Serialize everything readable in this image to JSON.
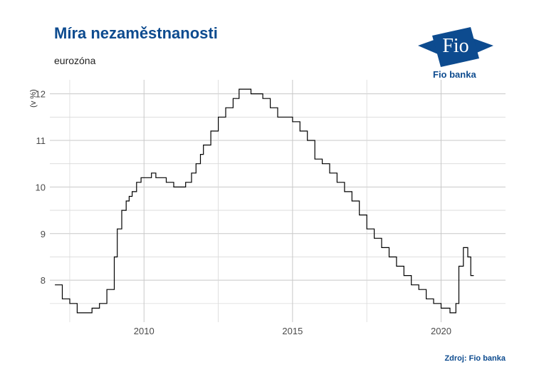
{
  "header": {
    "title": "Míra nezaměstnanosti",
    "subtitle": "eurozóna"
  },
  "logo": {
    "mark": "Fio",
    "name": "Fio banka",
    "color": "#0d4b8f"
  },
  "footer": {
    "source": "Zdroj: Fio banka"
  },
  "chart_data": {
    "type": "line",
    "title": "Míra nezaměstnanosti",
    "subtitle": "eurozóna",
    "xlabel": "",
    "ylabel": "(v %)",
    "xlim": [
      2006.83,
      2022.17
    ],
    "ylim": [
      7.1,
      12.3
    ],
    "x_ticks": [
      2010,
      2015,
      2020
    ],
    "y_ticks": [
      8,
      9,
      10,
      11,
      12
    ],
    "grid": true,
    "line_color": "#000000",
    "series": [
      {
        "x": [
          2007.0,
          2007.25,
          2007.5,
          2007.75,
          2007.9,
          2008.0,
          2008.25,
          2008.5,
          2008.75,
          2009.0,
          2009.1,
          2009.25,
          2009.4,
          2009.5,
          2009.6,
          2009.75,
          2009.9,
          2010.0,
          2010.25,
          2010.4,
          2010.6,
          2010.75,
          2011.0,
          2011.2,
          2011.4,
          2011.6,
          2011.75,
          2011.9,
          2012.0,
          2012.25,
          2012.5,
          2012.75,
          2013.0,
          2013.2,
          2013.4,
          2013.6,
          2013.75,
          2014.0,
          2014.25,
          2014.5,
          2014.75,
          2015.0,
          2015.25,
          2015.5,
          2015.75,
          2016.0,
          2016.25,
          2016.5,
          2016.75,
          2017.0,
          2017.25,
          2017.5,
          2017.75,
          2018.0,
          2018.25,
          2018.5,
          2018.75,
          2019.0,
          2019.25,
          2019.5,
          2019.75,
          2020.0,
          2020.2,
          2020.3,
          2020.4,
          2020.5,
          2020.6,
          2020.75,
          2020.9,
          2021.0,
          2021.1
        ],
        "y": [
          7.9,
          7.6,
          7.5,
          7.3,
          7.3,
          7.3,
          7.4,
          7.5,
          7.8,
          8.5,
          9.1,
          9.5,
          9.7,
          9.8,
          9.9,
          10.1,
          10.2,
          10.2,
          10.3,
          10.2,
          10.2,
          10.1,
          10.0,
          10.0,
          10.1,
          10.3,
          10.5,
          10.7,
          10.9,
          11.2,
          11.5,
          11.7,
          11.9,
          12.1,
          12.1,
          12.0,
          12.0,
          11.9,
          11.7,
          11.5,
          11.5,
          11.4,
          11.2,
          11.0,
          10.6,
          10.5,
          10.3,
          10.1,
          9.9,
          9.7,
          9.4,
          9.1,
          8.9,
          8.7,
          8.5,
          8.3,
          8.1,
          7.9,
          7.8,
          7.6,
          7.5,
          7.4,
          7.4,
          7.3,
          7.3,
          7.5,
          8.3,
          8.7,
          8.5,
          8.1,
          8.1
        ]
      }
    ]
  }
}
